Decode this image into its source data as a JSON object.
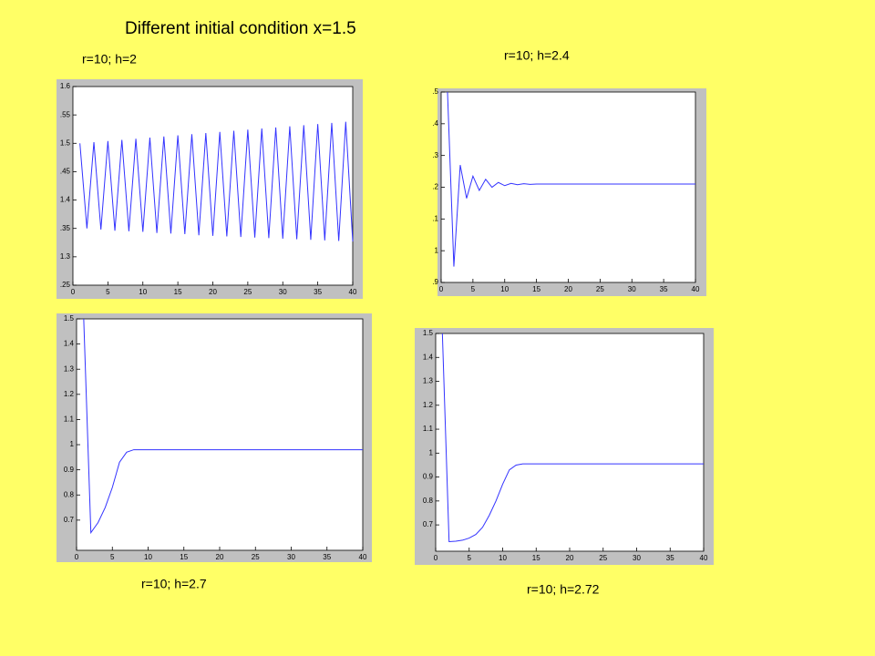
{
  "title": "Different initial condition x=1.5",
  "chart_data": [
    {
      "type": "line",
      "title": "r=10; h=2",
      "color": "#3333ff",
      "x": [
        1,
        2,
        3,
        4,
        5,
        6,
        7,
        8,
        9,
        10,
        11,
        12,
        13,
        14,
        15,
        16,
        17,
        18,
        19,
        20,
        21,
        22,
        23,
        24,
        25,
        26,
        27,
        28,
        29,
        30,
        31,
        32,
        33,
        34,
        35,
        36,
        37,
        38,
        39,
        40
      ],
      "values": [
        1.5,
        1.35,
        1.502,
        1.348,
        1.504,
        1.346,
        1.506,
        1.345,
        1.508,
        1.344,
        1.51,
        1.342,
        1.512,
        1.341,
        1.514,
        1.34,
        1.516,
        1.338,
        1.518,
        1.337,
        1.52,
        1.336,
        1.522,
        1.335,
        1.524,
        1.334,
        1.526,
        1.333,
        1.528,
        1.332,
        1.53,
        1.331,
        1.532,
        1.33,
        1.534,
        1.329,
        1.536,
        1.328,
        1.538,
        1.327
      ],
      "xlim": [
        0,
        40
      ],
      "xticks": [
        0,
        5,
        10,
        15,
        20,
        25,
        30,
        35,
        40
      ],
      "ylim": [
        1.25,
        1.6
      ],
      "yticks": [
        {
          "value": 1.25,
          "label": ".25"
        },
        1.3,
        {
          "value": 1.35,
          "label": ".35"
        },
        1.4,
        {
          "value": 1.45,
          "label": ".45"
        },
        1.5,
        {
          "value": 1.55,
          "label": ".55"
        },
        1.6
      ]
    },
    {
      "type": "line",
      "title": "r=10; h=2.4",
      "color": "#3333ff",
      "x": [
        1,
        2,
        3,
        4,
        5,
        6,
        7,
        8,
        9,
        10,
        11,
        12,
        13,
        14,
        15,
        16,
        17,
        18,
        19,
        20,
        21,
        22,
        23,
        24,
        25,
        26,
        27,
        28,
        29,
        30,
        31,
        32,
        33,
        34,
        35,
        36,
        37,
        38,
        39,
        40
      ],
      "values": [
        1.5,
        0.95,
        1.27,
        1.165,
        1.235,
        1.19,
        1.225,
        1.2,
        1.215,
        1.205,
        1.212,
        1.208,
        1.211,
        1.209,
        1.21,
        1.21,
        1.21,
        1.21,
        1.21,
        1.21,
        1.21,
        1.21,
        1.21,
        1.21,
        1.21,
        1.21,
        1.21,
        1.21,
        1.21,
        1.21,
        1.21,
        1.21,
        1.21,
        1.21,
        1.21,
        1.21,
        1.21,
        1.21,
        1.21,
        1.21
      ],
      "xlim": [
        0,
        40
      ],
      "xticks": [
        0,
        5,
        10,
        15,
        20,
        25,
        30,
        35,
        40
      ],
      "ylim": [
        0.9,
        1.5
      ],
      "yticks": [
        {
          "value": 0.9,
          "label": ".9"
        },
        1,
        {
          "value": 1.1,
          "label": ".1"
        },
        {
          "value": 1.2,
          "label": ".2"
        },
        {
          "value": 1.3,
          "label": ".3"
        },
        {
          "value": 1.4,
          "label": ".4"
        },
        {
          "value": 1.5,
          "label": ".5"
        }
      ]
    },
    {
      "type": "line",
      "title": "r=10; h=2.7",
      "color": "#3333ff",
      "x": [
        1,
        2,
        3,
        4,
        5,
        6,
        7,
        8,
        9,
        10,
        11,
        12,
        13,
        14,
        15,
        16,
        17,
        18,
        19,
        20,
        21,
        22,
        23,
        24,
        25,
        26,
        27,
        28,
        29,
        30,
        31,
        32,
        33,
        34,
        35,
        36,
        37,
        38,
        39,
        40
      ],
      "values": [
        1.5,
        0.65,
        0.69,
        0.75,
        0.83,
        0.93,
        0.97,
        0.98,
        0.98,
        0.98,
        0.98,
        0.98,
        0.98,
        0.98,
        0.98,
        0.98,
        0.98,
        0.98,
        0.98,
        0.98,
        0.98,
        0.98,
        0.98,
        0.98,
        0.98,
        0.98,
        0.98,
        0.98,
        0.98,
        0.98,
        0.98,
        0.98,
        0.98,
        0.98,
        0.98,
        0.98,
        0.98,
        0.98,
        0.98,
        0.98
      ],
      "xlim": [
        0,
        40
      ],
      "xticks": [
        0,
        5,
        10,
        15,
        20,
        25,
        30,
        35,
        40
      ],
      "ylim": [
        0.58,
        1.5
      ],
      "yticks": [
        0.7,
        0.8,
        0.9,
        1,
        1.1,
        1.2,
        1.3,
        1.4,
        1.5
      ]
    },
    {
      "type": "line",
      "title": "r=10; h=2.72",
      "color": "#3333ff",
      "x": [
        1,
        2,
        3,
        4,
        5,
        6,
        7,
        8,
        9,
        10,
        11,
        12,
        13,
        14,
        15,
        16,
        17,
        18,
        19,
        20,
        21,
        22,
        23,
        24,
        25,
        26,
        27,
        28,
        29,
        30,
        31,
        32,
        33,
        34,
        35,
        36,
        37,
        38,
        39,
        40
      ],
      "values": [
        1.5,
        0.63,
        0.632,
        0.636,
        0.645,
        0.66,
        0.69,
        0.74,
        0.8,
        0.87,
        0.93,
        0.95,
        0.955,
        0.955,
        0.955,
        0.955,
        0.955,
        0.955,
        0.955,
        0.955,
        0.955,
        0.955,
        0.955,
        0.955,
        0.955,
        0.955,
        0.955,
        0.955,
        0.955,
        0.955,
        0.955,
        0.955,
        0.955,
        0.955,
        0.955,
        0.955,
        0.955,
        0.955,
        0.955,
        0.955
      ],
      "xlim": [
        0,
        40
      ],
      "xticks": [
        0,
        5,
        10,
        15,
        20,
        25,
        30,
        35,
        40
      ],
      "ylim": [
        0.59,
        1.5
      ],
      "yticks": [
        0.7,
        0.8,
        0.9,
        1,
        1.1,
        1.2,
        1.3,
        1.4,
        1.5
      ]
    }
  ]
}
